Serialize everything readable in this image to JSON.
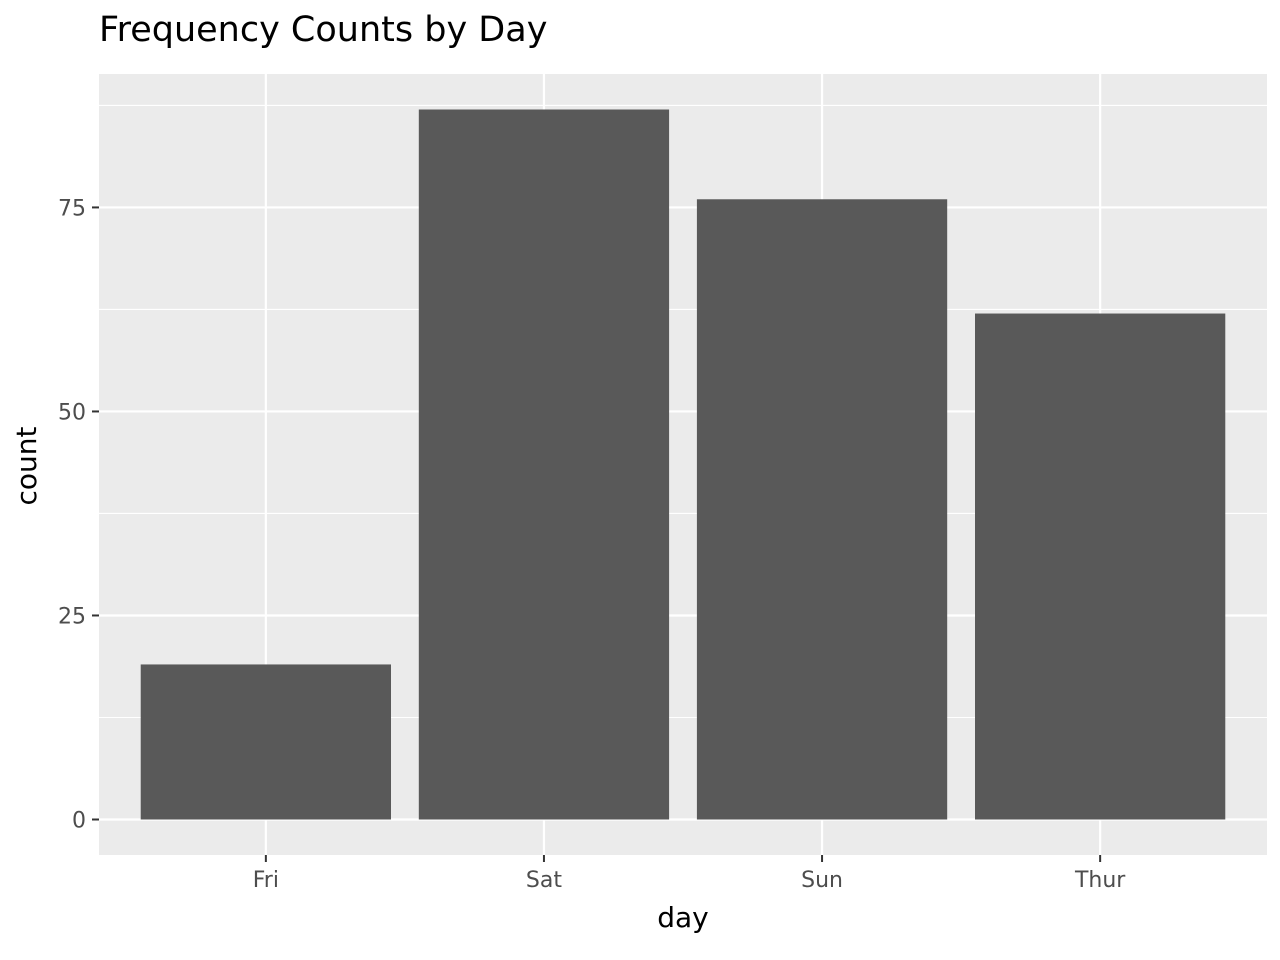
{
  "chart_data": {
    "type": "bar",
    "title": "Frequency Counts by Day",
    "xlabel": "day",
    "ylabel": "count",
    "categories": [
      "Fri",
      "Sat",
      "Sun",
      "Thur"
    ],
    "values": [
      19,
      87,
      76,
      62
    ],
    "ylim": [
      -4.35,
      91.35
    ],
    "yticks": [
      0,
      25,
      50,
      75
    ],
    "ytick_labels": [
      "0",
      "25",
      "50",
      "75"
    ],
    "grid": true,
    "legend": "none",
    "colors": {
      "bar": "#595959",
      "panel": "#ebebeb",
      "grid": "#ffffff",
      "tick": "#333333",
      "tick_text": "#4d4d4d"
    }
  }
}
